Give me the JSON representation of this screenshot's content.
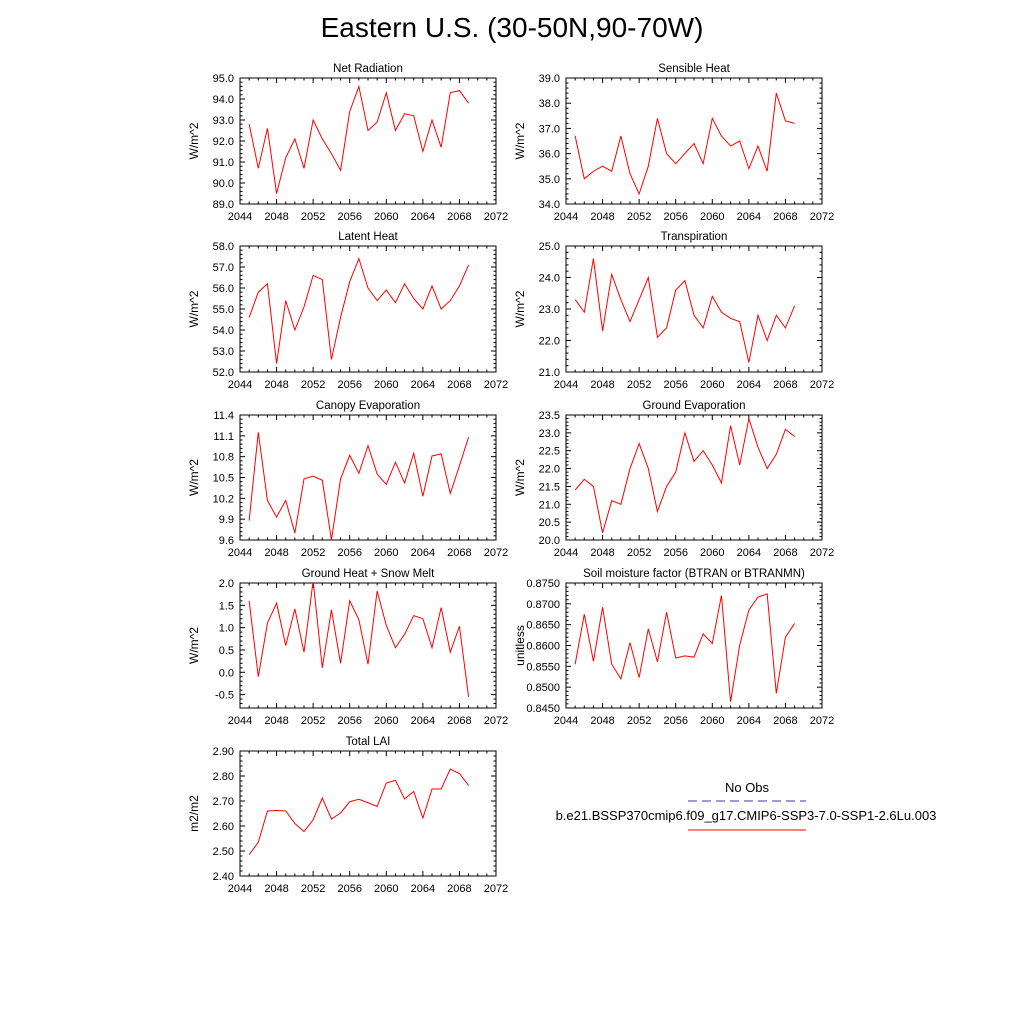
{
  "title": "Eastern U.S. (30-50N,90-70W)",
  "chart_data": [
    {
      "type": "line",
      "title": "Net Radiation",
      "xlabel": "",
      "ylabel": "W/m^2",
      "xlim": [
        2044,
        2072
      ],
      "ylim": [
        89.0,
        95.0
      ],
      "xticks": [
        2044,
        2048,
        2052,
        2056,
        2060,
        2064,
        2068,
        2072
      ],
      "yticks": [
        "89.0",
        "90.0",
        "91.0",
        "92.0",
        "93.0",
        "94.0",
        "95.0"
      ],
      "series": [
        {
          "x": [
            2045,
            2046,
            2047,
            2048,
            2049,
            2050,
            2051,
            2052,
            2053,
            2054,
            2055,
            2056,
            2057,
            2058,
            2059,
            2060,
            2061,
            2062,
            2063,
            2064,
            2065,
            2066,
            2067,
            2068,
            2069
          ],
          "y": [
            92.8,
            90.7,
            92.6,
            89.5,
            91.2,
            92.1,
            90.7,
            93.0,
            92.1,
            91.4,
            90.6,
            93.4,
            94.6,
            92.5,
            92.9,
            94.3,
            92.5,
            93.3,
            93.2,
            91.5,
            93.0,
            91.7,
            94.3,
            94.4,
            93.8
          ]
        }
      ]
    },
    {
      "type": "line",
      "title": "Sensible Heat",
      "xlabel": "",
      "ylabel": "W/m^2",
      "xlim": [
        2044,
        2072
      ],
      "ylim": [
        34.0,
        39.0
      ],
      "xticks": [
        2044,
        2048,
        2052,
        2056,
        2060,
        2064,
        2068,
        2072
      ],
      "yticks": [
        "34.0",
        "35.0",
        "36.0",
        "37.0",
        "38.0",
        "39.0"
      ],
      "series": [
        {
          "x": [
            2045,
            2046,
            2047,
            2048,
            2049,
            2050,
            2051,
            2052,
            2053,
            2054,
            2055,
            2056,
            2057,
            2058,
            2059,
            2060,
            2061,
            2062,
            2063,
            2064,
            2065,
            2066,
            2067,
            2068,
            2069
          ],
          "y": [
            36.7,
            35.0,
            35.3,
            35.5,
            35.3,
            36.7,
            35.2,
            34.4,
            35.5,
            37.4,
            36.0,
            35.6,
            36.0,
            36.4,
            35.6,
            37.4,
            36.7,
            36.3,
            36.5,
            35.4,
            36.3,
            35.3,
            38.4,
            37.3,
            37.2
          ]
        }
      ]
    },
    {
      "type": "line",
      "title": "Latent Heat",
      "xlabel": "",
      "ylabel": "W/m^2",
      "xlim": [
        2044,
        2072
      ],
      "ylim": [
        52.0,
        58.0
      ],
      "xticks": [
        2044,
        2048,
        2052,
        2056,
        2060,
        2064,
        2068,
        2072
      ],
      "yticks": [
        "52.0",
        "53.0",
        "54.0",
        "55.0",
        "56.0",
        "57.0",
        "58.0"
      ],
      "series": [
        {
          "x": [
            2045,
            2046,
            2047,
            2048,
            2049,
            2050,
            2051,
            2052,
            2053,
            2054,
            2055,
            2056,
            2057,
            2058,
            2059,
            2060,
            2061,
            2062,
            2063,
            2064,
            2065,
            2066,
            2067,
            2068,
            2069
          ],
          "y": [
            54.6,
            55.8,
            56.2,
            52.4,
            55.4,
            54.0,
            55.1,
            56.6,
            56.4,
            52.6,
            54.6,
            56.3,
            57.4,
            56.0,
            55.4,
            55.9,
            55.3,
            56.2,
            55.5,
            55.0,
            56.1,
            55.0,
            55.4,
            56.1,
            57.1
          ]
        }
      ]
    },
    {
      "type": "line",
      "title": "Transpiration",
      "xlabel": "",
      "ylabel": "W/m^2",
      "xlim": [
        2044,
        2072
      ],
      "ylim": [
        21.0,
        25.0
      ],
      "xticks": [
        2044,
        2048,
        2052,
        2056,
        2060,
        2064,
        2068,
        2072
      ],
      "yticks": [
        "21.0",
        "22.0",
        "23.0",
        "24.0",
        "25.0"
      ],
      "series": [
        {
          "x": [
            2045,
            2046,
            2047,
            2048,
            2049,
            2050,
            2051,
            2052,
            2053,
            2054,
            2055,
            2056,
            2057,
            2058,
            2059,
            2060,
            2061,
            2062,
            2063,
            2064,
            2065,
            2066,
            2067,
            2068,
            2069
          ],
          "y": [
            23.3,
            22.9,
            24.6,
            22.3,
            24.1,
            23.3,
            22.6,
            23.3,
            24.0,
            22.1,
            22.4,
            23.6,
            23.9,
            22.8,
            22.4,
            23.4,
            22.9,
            22.7,
            22.6,
            21.3,
            22.8,
            22.0,
            22.8,
            22.4,
            23.1
          ]
        }
      ]
    },
    {
      "type": "line",
      "title": "Canopy Evaporation",
      "xlabel": "",
      "ylabel": "W/m^2",
      "xlim": [
        2044,
        2072
      ],
      "ylim": [
        9.6,
        11.4
      ],
      "xticks": [
        2044,
        2048,
        2052,
        2056,
        2060,
        2064,
        2068,
        2072
      ],
      "yticks": [
        "9.6",
        "9.9",
        "10.2",
        "10.5",
        "10.8",
        "11.1",
        "11.4"
      ],
      "series": [
        {
          "x": [
            2045,
            2046,
            2047,
            2048,
            2049,
            2050,
            2051,
            2052,
            2053,
            2054,
            2055,
            2056,
            2057,
            2058,
            2059,
            2060,
            2061,
            2062,
            2063,
            2064,
            2065,
            2066,
            2067,
            2068,
            2069
          ],
          "y": [
            9.88,
            11.15,
            10.17,
            9.93,
            10.17,
            9.7,
            10.48,
            10.52,
            10.46,
            9.6,
            10.48,
            10.82,
            10.56,
            10.96,
            10.55,
            10.4,
            10.72,
            10.42,
            10.85,
            10.23,
            10.81,
            10.84,
            10.27,
            10.67,
            11.08
          ]
        }
      ]
    },
    {
      "type": "line",
      "title": "Ground Evaporation",
      "xlabel": "",
      "ylabel": "W/m^2",
      "xlim": [
        2044,
        2072
      ],
      "ylim": [
        20.0,
        23.5
      ],
      "xticks": [
        2044,
        2048,
        2052,
        2056,
        2060,
        2064,
        2068,
        2072
      ],
      "yticks": [
        "20.0",
        "20.5",
        "21.0",
        "21.5",
        "22.0",
        "22.5",
        "23.0",
        "23.5"
      ],
      "series": [
        {
          "x": [
            2045,
            2046,
            2047,
            2048,
            2049,
            2050,
            2051,
            2052,
            2053,
            2054,
            2055,
            2056,
            2057,
            2058,
            2059,
            2060,
            2061,
            2062,
            2063,
            2064,
            2065,
            2066,
            2067,
            2068,
            2069
          ],
          "y": [
            21.4,
            21.7,
            21.5,
            20.2,
            21.1,
            21.0,
            22.0,
            22.7,
            22.0,
            20.8,
            21.5,
            21.9,
            23.0,
            22.2,
            22.5,
            22.1,
            21.6,
            23.2,
            22.1,
            23.4,
            22.6,
            22.0,
            22.4,
            23.1,
            22.9
          ]
        }
      ]
    },
    {
      "type": "line",
      "title": "Ground Heat + Snow Melt",
      "xlabel": "",
      "ylabel": "W/m^2",
      "xlim": [
        2044,
        2072
      ],
      "ylim": [
        -0.8,
        2.0
      ],
      "xticks": [
        2044,
        2048,
        2052,
        2056,
        2060,
        2064,
        2068,
        2072
      ],
      "yticks": [
        "-0.5",
        "0.0",
        "0.5",
        "1.0",
        "1.5",
        "2.0"
      ],
      "series": [
        {
          "x": [
            2045,
            2046,
            2047,
            2048,
            2049,
            2050,
            2051,
            2052,
            2053,
            2054,
            2055,
            2056,
            2057,
            2058,
            2059,
            2060,
            2061,
            2062,
            2063,
            2064,
            2065,
            2066,
            2067,
            2068,
            2069
          ],
          "y": [
            1.6,
            -0.1,
            1.1,
            1.55,
            0.6,
            1.42,
            0.45,
            2.05,
            0.1,
            1.4,
            0.2,
            1.6,
            1.18,
            0.18,
            1.82,
            1.05,
            0.55,
            0.85,
            1.27,
            1.2,
            0.55,
            1.45,
            0.45,
            1.03,
            -0.55
          ]
        }
      ]
    },
    {
      "type": "line",
      "title": "Soil moisture factor (BTRAN or BTRANMN)",
      "xlabel": "",
      "ylabel": "unitless",
      "xlim": [
        2044,
        2072
      ],
      "ylim": [
        0.845,
        0.875
      ],
      "xticks": [
        2044,
        2048,
        2052,
        2056,
        2060,
        2064,
        2068,
        2072
      ],
      "yticks": [
        "0.8450",
        "0.8500",
        "0.8550",
        "0.8600",
        "0.8650",
        "0.8700",
        "0.8750"
      ],
      "series": [
        {
          "x": [
            2045,
            2046,
            2047,
            2048,
            2049,
            2050,
            2051,
            2052,
            2053,
            2054,
            2055,
            2056,
            2057,
            2058,
            2059,
            2060,
            2061,
            2062,
            2063,
            2064,
            2065,
            2066,
            2067,
            2068,
            2069
          ],
          "y": [
            0.8555,
            0.8675,
            0.8562,
            0.8692,
            0.8555,
            0.852,
            0.8607,
            0.8523,
            0.864,
            0.8561,
            0.868,
            0.857,
            0.8575,
            0.8572,
            0.8628,
            0.8605,
            0.872,
            0.8465,
            0.8601,
            0.8685,
            0.8716,
            0.8724,
            0.8485,
            0.862,
            0.8653
          ]
        }
      ]
    },
    {
      "type": "line",
      "title": "Total LAI",
      "xlabel": "",
      "ylabel": "m2/m2",
      "xlim": [
        2044,
        2072
      ],
      "ylim": [
        2.4,
        2.9
      ],
      "xticks": [
        2044,
        2048,
        2052,
        2056,
        2060,
        2064,
        2068,
        2072
      ],
      "yticks": [
        "2.40",
        "2.50",
        "2.60",
        "2.70",
        "2.80",
        "2.90"
      ],
      "series": [
        {
          "x": [
            2045,
            2046,
            2047,
            2048,
            2049,
            2050,
            2051,
            2052,
            2053,
            2054,
            2055,
            2056,
            2057,
            2058,
            2059,
            2060,
            2061,
            2062,
            2063,
            2064,
            2065,
            2066,
            2067,
            2068,
            2069
          ],
          "y": [
            2.485,
            2.535,
            2.66,
            2.662,
            2.66,
            2.61,
            2.578,
            2.625,
            2.712,
            2.628,
            2.652,
            2.697,
            2.707,
            2.693,
            2.678,
            2.772,
            2.783,
            2.708,
            2.738,
            2.632,
            2.748,
            2.748,
            2.828,
            2.81,
            2.762
          ]
        }
      ]
    }
  ],
  "legend": {
    "obs_label": "No Obs",
    "obs_color": "#3a3aa8",
    "case_label": "b.e21.BSSP370cmip6.f09_g17.CMIP6-SSP3-7.0-SSP1-2.6Lu.003",
    "case_color": "#ff0000"
  }
}
